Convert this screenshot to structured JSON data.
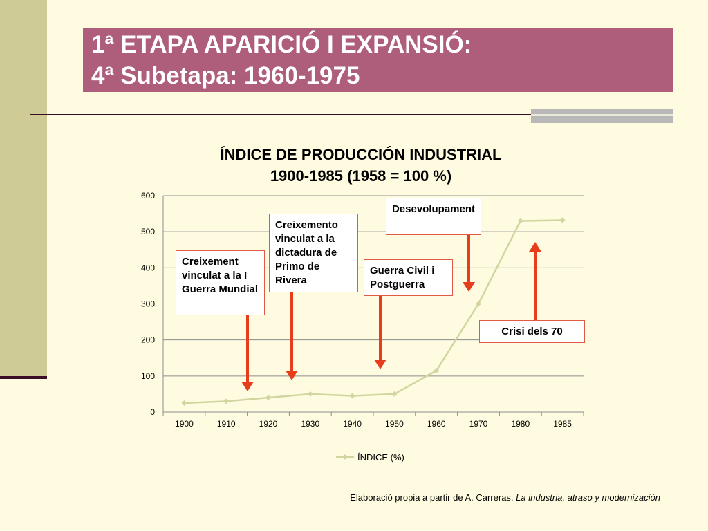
{
  "slide": {
    "title_line1": "1ª ETAPA APARICIÓ I EXPANSIÓ:",
    "title_line2": "4ª Subetapa: 1960-1975"
  },
  "colors": {
    "title_bg": "#ae5e7b",
    "background": "#fffbe0",
    "series": "#d3d5a0",
    "arrow": "#e83d1c",
    "callout_border": "#e05a45"
  },
  "callouts": [
    {
      "text": "Creixement vinculat a la I Guerra Mundial"
    },
    {
      "text": "Creixemento vinculat a la dictadura de Primo de Rivera"
    },
    {
      "text": "Guerra Civil i Postguerra"
    },
    {
      "text": "Desevolupament"
    },
    {
      "text": "Crisi dels 70"
    }
  ],
  "source": {
    "prefix": "Elaboració propia a partir de A. Carreras, ",
    "italic": "La industria, atraso y modernización"
  },
  "chart_data": {
    "type": "line",
    "title": "ÍNDICE DE PRODUCCIÓN INDUSTRIAL",
    "subtitle": "1900-1985 (1958 = 100 %)",
    "categories": [
      "1900",
      "1910",
      "1920",
      "1930",
      "1940",
      "1950",
      "1960",
      "1970",
      "1980",
      "1985"
    ],
    "series": [
      {
        "name": "ÍNDICE (%)",
        "values": [
          25,
          30,
          40,
          50,
          45,
          50,
          115,
          300,
          530,
          532
        ]
      }
    ],
    "ylim": [
      0,
      600
    ],
    "yticks": [
      0,
      100,
      200,
      300,
      400,
      500,
      600
    ],
    "grid": true,
    "legend": "bottom"
  }
}
